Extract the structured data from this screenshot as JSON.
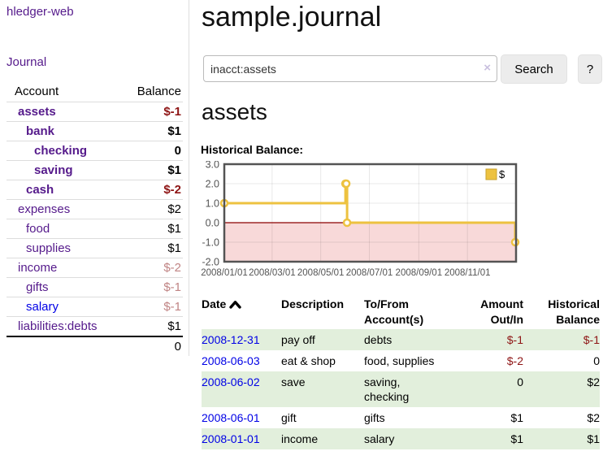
{
  "app": {
    "brand": "hledger-web",
    "nav_journal": "Journal"
  },
  "page": {
    "title": "sample.journal",
    "account_heading": "assets",
    "chart_title": "Historical Balance:"
  },
  "search": {
    "value": "inacct:assets",
    "clear_icon": "×",
    "search_button": "Search",
    "help_button": "?"
  },
  "sidebar": {
    "columns": {
      "account": "Account",
      "balance": "Balance"
    },
    "accounts": [
      {
        "name": "assets",
        "depth": 0,
        "bold": true,
        "balance": "$-1",
        "balance_style": "neg"
      },
      {
        "name": "bank",
        "depth": 1,
        "bold": true,
        "balance": "$1",
        "balance_style": "pos"
      },
      {
        "name": "checking",
        "depth": 2,
        "bold": true,
        "balance": "0",
        "balance_style": "pos"
      },
      {
        "name": "saving",
        "depth": 2,
        "bold": true,
        "balance": "$1",
        "balance_style": "pos"
      },
      {
        "name": "cash",
        "depth": 1,
        "bold": true,
        "balance": "$-2",
        "balance_style": "neg"
      },
      {
        "name": "expenses",
        "depth": 0,
        "bold": false,
        "balance": "$2",
        "balance_style": "pos"
      },
      {
        "name": "food",
        "depth": 1,
        "bold": false,
        "balance": "$1",
        "balance_style": "pos"
      },
      {
        "name": "supplies",
        "depth": 1,
        "bold": false,
        "balance": "$1",
        "balance_style": "pos"
      },
      {
        "name": "income",
        "depth": 0,
        "bold": false,
        "balance": "$-2",
        "balance_style": "neg-light"
      },
      {
        "name": "gifts",
        "depth": 1,
        "bold": false,
        "balance": "$-1",
        "balance_style": "neg-light"
      },
      {
        "name": "salary",
        "depth": 1,
        "bold": false,
        "link_style": "unvisited",
        "balance": "$-1",
        "balance_style": "neg-light"
      },
      {
        "name": "liabilities:debts",
        "depth": 0,
        "bold": false,
        "balance": "$1",
        "balance_style": "pos"
      }
    ],
    "total": "0"
  },
  "chart_data": {
    "type": "line",
    "step": true,
    "title": "Historical Balance:",
    "xlim": [
      "2008-01-01",
      "2009-01-01"
    ],
    "ylim": [
      -2,
      3
    ],
    "grid": true,
    "x_ticks": [
      {
        "label": "2008/01/01",
        "date": "2008-01-01"
      },
      {
        "label": "2008/03/01",
        "date": "2008-03-01"
      },
      {
        "label": "2008/05/01",
        "date": "2008-05-01"
      },
      {
        "label": "2008/07/01",
        "date": "2008-07-01"
      },
      {
        "label": "2008/09/01",
        "date": "2008-09-01"
      },
      {
        "label": "2008/11/01",
        "date": "2008-11-01"
      }
    ],
    "y_ticks": [
      {
        "label": "3.0",
        "v": 3
      },
      {
        "label": "2.0",
        "v": 2
      },
      {
        "label": "1.0",
        "v": 1
      },
      {
        "label": "0.0",
        "v": 0
      },
      {
        "label": "-1.0",
        "v": -1
      },
      {
        "label": "-2.0",
        "v": -2
      }
    ],
    "series": [
      {
        "name": "$",
        "color": "#edc240",
        "points": [
          [
            "2008-01-01",
            1
          ],
          [
            "2008-06-01",
            2
          ],
          [
            "2008-06-02",
            2
          ],
          [
            "2008-06-03",
            0
          ],
          [
            "2008-12-31",
            -1
          ]
        ]
      }
    ],
    "legend_position": "top-right",
    "negative_region_fill": "#f8d9d9",
    "zero_line_color": "#8b0000",
    "border_color": "#545454"
  },
  "register": {
    "columns": [
      {
        "key": "date",
        "label": "Date",
        "align": "left",
        "sort_icon": "chevron-up"
      },
      {
        "key": "description",
        "label": "Description",
        "align": "left"
      },
      {
        "key": "accounts",
        "label": "To/From Account(s)",
        "align": "left"
      },
      {
        "key": "amount",
        "label": "Amount Out/In",
        "align": "right"
      },
      {
        "key": "balance",
        "label": "Historical Balance",
        "align": "right"
      }
    ],
    "rows": [
      {
        "date": "2008-12-31",
        "description": "pay off",
        "accounts": "debts",
        "amount": "$-1",
        "amount_negative": true,
        "balance": "$-1",
        "balance_negative": true
      },
      {
        "date": "2008-06-03",
        "description": "eat & shop",
        "accounts": "food, supplies",
        "amount": "$-2",
        "amount_negative": true,
        "balance": "0",
        "balance_negative": false
      },
      {
        "date": "2008-06-02",
        "description": "save",
        "accounts": "saving, checking",
        "amount": "0",
        "amount_negative": false,
        "balance": "$2",
        "balance_negative": false
      },
      {
        "date": "2008-06-01",
        "description": "gift",
        "accounts": "gifts",
        "amount": "$1",
        "amount_negative": false,
        "balance": "$2",
        "balance_negative": false
      },
      {
        "date": "2008-01-01",
        "description": "income",
        "accounts": "salary",
        "amount": "$1",
        "amount_negative": false,
        "balance": "$1",
        "balance_negative": false
      }
    ]
  },
  "colors": {
    "link_purple": "#551a8b",
    "link_blue": "#0000e6",
    "negative": "#8e1515",
    "negative_light": "#c08484",
    "row_green": "#e2efdc",
    "accent_gold": "#edc240"
  }
}
